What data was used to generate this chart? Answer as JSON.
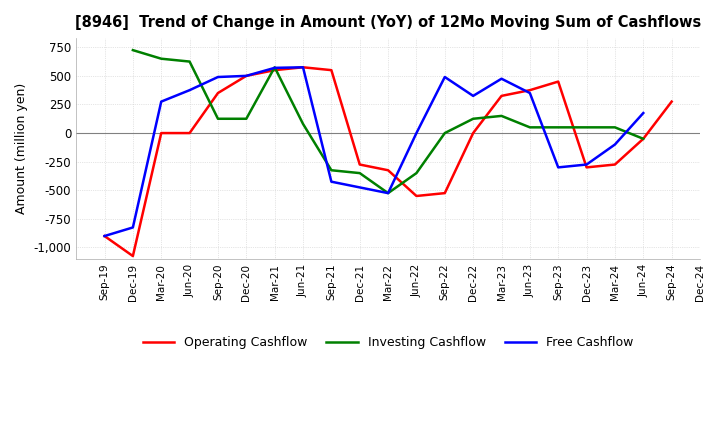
{
  "title": "[8946]  Trend of Change in Amount (YoY) of 12Mo Moving Sum of Cashflows",
  "ylabel": "Amount (million yen)",
  "ylim": [
    -1100,
    830
  ],
  "yticks": [
    -1000,
    -750,
    -500,
    -250,
    0,
    250,
    500,
    750
  ],
  "x_labels": [
    "Sep-19",
    "Dec-19",
    "Mar-20",
    "Jun-20",
    "Sep-20",
    "Dec-20",
    "Mar-21",
    "Jun-21",
    "Sep-21",
    "Dec-21",
    "Mar-22",
    "Jun-22",
    "Sep-22",
    "Dec-22",
    "Mar-23",
    "Jun-23",
    "Sep-23",
    "Dec-23",
    "Mar-24",
    "Jun-24",
    "Sep-24",
    "Dec-24"
  ],
  "operating": [
    -900,
    -1075,
    0,
    0,
    350,
    500,
    550,
    575,
    550,
    -275,
    -325,
    -550,
    -525,
    0,
    325,
    375,
    450,
    -300,
    -275,
    -50,
    275,
    null
  ],
  "investing": [
    null,
    725,
    650,
    625,
    125,
    125,
    575,
    80,
    -325,
    -350,
    -525,
    -350,
    0,
    125,
    150,
    50,
    50,
    50,
    50,
    -50,
    null,
    null
  ],
  "free": [
    -900,
    -825,
    275,
    375,
    490,
    500,
    570,
    575,
    -425,
    -475,
    -525,
    0,
    490,
    325,
    475,
    350,
    -300,
    -275,
    -100,
    175,
    null,
    null
  ],
  "legend": [
    "Operating Cashflow",
    "Investing Cashflow",
    "Free Cashflow"
  ],
  "colors": [
    "red",
    "green",
    "blue"
  ],
  "bg_color": "#ffffff",
  "grid_dot_color": "#cccccc"
}
